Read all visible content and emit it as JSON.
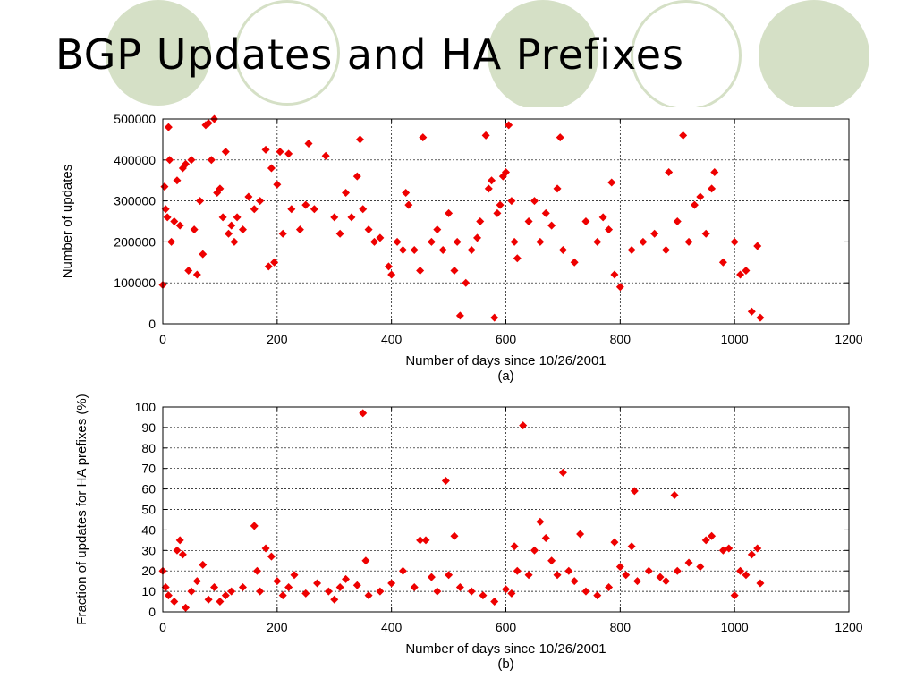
{
  "slide": {
    "title": "BGP Updates and HA Prefixes",
    "accent_color": "#d5e0c6"
  },
  "chart_data": [
    {
      "type": "scatter",
      "ylabel": "Number of updates",
      "xlabel": "Number of days since 10/26/2001",
      "caption": "(a)",
      "xlim": [
        0,
        1200
      ],
      "ylim": [
        0,
        500000
      ],
      "xticks": [
        0,
        200,
        400,
        600,
        800,
        1000,
        1200
      ],
      "yticks": [
        0,
        100000,
        200000,
        300000,
        400000,
        500000
      ],
      "grid": true,
      "marker": "diamond",
      "color": "#ee0000",
      "series": [
        {
          "points": [
            [
              0,
              95000
            ],
            [
              3,
              335000
            ],
            [
              5,
              280000
            ],
            [
              8,
              260000
            ],
            [
              10,
              480000
            ],
            [
              12,
              400000
            ],
            [
              15,
              200000
            ],
            [
              20,
              250000
            ],
            [
              25,
              350000
            ],
            [
              30,
              240000
            ],
            [
              35,
              380000
            ],
            [
              40,
              390000
            ],
            [
              45,
              130000
            ],
            [
              50,
              400000
            ],
            [
              55,
              230000
            ],
            [
              60,
              120000
            ],
            [
              65,
              300000
            ],
            [
              70,
              170000
            ],
            [
              75,
              485000
            ],
            [
              80,
              490000
            ],
            [
              85,
              400000
            ],
            [
              90,
              500000
            ],
            [
              95,
              320000
            ],
            [
              100,
              330000
            ],
            [
              105,
              260000
            ],
            [
              110,
              420000
            ],
            [
              115,
              220000
            ],
            [
              120,
              240000
            ],
            [
              125,
              200000
            ],
            [
              130,
              260000
            ],
            [
              140,
              230000
            ],
            [
              150,
              310000
            ],
            [
              160,
              280000
            ],
            [
              170,
              300000
            ],
            [
              180,
              425000
            ],
            [
              185,
              140000
            ],
            [
              190,
              380000
            ],
            [
              195,
              150000
            ],
            [
              200,
              340000
            ],
            [
              205,
              420000
            ],
            [
              210,
              220000
            ],
            [
              220,
              415000
            ],
            [
              225,
              280000
            ],
            [
              240,
              230000
            ],
            [
              250,
              290000
            ],
            [
              255,
              440000
            ],
            [
              265,
              280000
            ],
            [
              285,
              410000
            ],
            [
              300,
              260000
            ],
            [
              310,
              220000
            ],
            [
              320,
              320000
            ],
            [
              330,
              260000
            ],
            [
              340,
              360000
            ],
            [
              345,
              450000
            ],
            [
              350,
              280000
            ],
            [
              360,
              230000
            ],
            [
              370,
              200000
            ],
            [
              380,
              210000
            ],
            [
              395,
              140000
            ],
            [
              400,
              120000
            ],
            [
              410,
              200000
            ],
            [
              420,
              180000
            ],
            [
              425,
              320000
            ],
            [
              430,
              290000
            ],
            [
              440,
              180000
            ],
            [
              450,
              130000
            ],
            [
              455,
              455000
            ],
            [
              470,
              200000
            ],
            [
              480,
              230000
            ],
            [
              490,
              180000
            ],
            [
              500,
              270000
            ],
            [
              510,
              130000
            ],
            [
              515,
              200000
            ],
            [
              520,
              20000
            ],
            [
              530,
              100000
            ],
            [
              540,
              180000
            ],
            [
              550,
              210000
            ],
            [
              555,
              250000
            ],
            [
              565,
              460000
            ],
            [
              570,
              330000
            ],
            [
              575,
              350000
            ],
            [
              580,
              15000
            ],
            [
              585,
              270000
            ],
            [
              590,
              290000
            ],
            [
              595,
              360000
            ],
            [
              600,
              370000
            ],
            [
              605,
              485000
            ],
            [
              610,
              300000
            ],
            [
              615,
              200000
            ],
            [
              620,
              160000
            ],
            [
              640,
              250000
            ],
            [
              650,
              300000
            ],
            [
              660,
              200000
            ],
            [
              670,
              270000
            ],
            [
              680,
              240000
            ],
            [
              690,
              330000
            ],
            [
              695,
              455000
            ],
            [
              700,
              180000
            ],
            [
              720,
              150000
            ],
            [
              740,
              250000
            ],
            [
              760,
              200000
            ],
            [
              770,
              260000
            ],
            [
              780,
              230000
            ],
            [
              785,
              345000
            ],
            [
              790,
              120000
            ],
            [
              800,
              90000
            ],
            [
              820,
              180000
            ],
            [
              840,
              200000
            ],
            [
              860,
              220000
            ],
            [
              880,
              180000
            ],
            [
              885,
              370000
            ],
            [
              900,
              250000
            ],
            [
              910,
              460000
            ],
            [
              920,
              200000
            ],
            [
              930,
              290000
            ],
            [
              940,
              310000
            ],
            [
              950,
              220000
            ],
            [
              960,
              330000
            ],
            [
              965,
              370000
            ],
            [
              980,
              150000
            ],
            [
              1000,
              200000
            ],
            [
              1010,
              120000
            ],
            [
              1020,
              130000
            ],
            [
              1030,
              30000
            ],
            [
              1040,
              190000
            ],
            [
              1045,
              15000
            ]
          ]
        }
      ]
    },
    {
      "type": "scatter",
      "ylabel": "Fraction of updates for HA prefixes (%)",
      "xlabel": "Number of days since 10/26/2001",
      "caption": "(b)",
      "xlim": [
        0,
        1200
      ],
      "ylim": [
        0,
        100
      ],
      "xticks": [
        0,
        200,
        400,
        600,
        800,
        1000,
        1200
      ],
      "yticks": [
        0,
        10,
        20,
        30,
        40,
        50,
        60,
        70,
        80,
        90,
        100
      ],
      "grid": true,
      "marker": "diamond",
      "color": "#ee0000",
      "series": [
        {
          "points": [
            [
              0,
              20
            ],
            [
              5,
              12
            ],
            [
              10,
              8
            ],
            [
              20,
              5
            ],
            [
              25,
              30
            ],
            [
              30,
              35
            ],
            [
              35,
              28
            ],
            [
              40,
              2
            ],
            [
              50,
              10
            ],
            [
              60,
              15
            ],
            [
              70,
              23
            ],
            [
              80,
              6
            ],
            [
              90,
              12
            ],
            [
              100,
              5
            ],
            [
              110,
              8
            ],
            [
              120,
              10
            ],
            [
              140,
              12
            ],
            [
              160,
              42
            ],
            [
              165,
              20
            ],
            [
              170,
              10
            ],
            [
              180,
              31
            ],
            [
              190,
              27
            ],
            [
              200,
              15
            ],
            [
              210,
              8
            ],
            [
              220,
              12
            ],
            [
              230,
              18
            ],
            [
              250,
              9
            ],
            [
              270,
              14
            ],
            [
              290,
              10
            ],
            [
              300,
              6
            ],
            [
              310,
              12
            ],
            [
              320,
              16
            ],
            [
              340,
              13
            ],
            [
              350,
              97
            ],
            [
              355,
              25
            ],
            [
              360,
              8
            ],
            [
              380,
              10
            ],
            [
              400,
              14
            ],
            [
              420,
              20
            ],
            [
              440,
              12
            ],
            [
              450,
              35
            ],
            [
              460,
              35
            ],
            [
              470,
              17
            ],
            [
              480,
              10
            ],
            [
              495,
              64
            ],
            [
              500,
              18
            ],
            [
              510,
              37
            ],
            [
              520,
              12
            ],
            [
              540,
              10
            ],
            [
              560,
              8
            ],
            [
              580,
              5
            ],
            [
              600,
              11
            ],
            [
              610,
              9
            ],
            [
              615,
              32
            ],
            [
              620,
              20
            ],
            [
              630,
              91
            ],
            [
              640,
              18
            ],
            [
              650,
              30
            ],
            [
              660,
              44
            ],
            [
              670,
              36
            ],
            [
              680,
              25
            ],
            [
              690,
              18
            ],
            [
              700,
              68
            ],
            [
              710,
              20
            ],
            [
              720,
              15
            ],
            [
              730,
              38
            ],
            [
              740,
              10
            ],
            [
              760,
              8
            ],
            [
              780,
              12
            ],
            [
              790,
              34
            ],
            [
              800,
              22
            ],
            [
              810,
              18
            ],
            [
              820,
              32
            ],
            [
              825,
              59
            ],
            [
              830,
              15
            ],
            [
              850,
              20
            ],
            [
              870,
              17
            ],
            [
              880,
              15
            ],
            [
              895,
              57
            ],
            [
              900,
              20
            ],
            [
              920,
              24
            ],
            [
              940,
              22
            ],
            [
              950,
              35
            ],
            [
              960,
              37
            ],
            [
              980,
              30
            ],
            [
              990,
              31
            ],
            [
              1000,
              8
            ],
            [
              1010,
              20
            ],
            [
              1020,
              18
            ],
            [
              1030,
              28
            ],
            [
              1040,
              31
            ],
            [
              1045,
              14
            ]
          ]
        }
      ]
    }
  ]
}
